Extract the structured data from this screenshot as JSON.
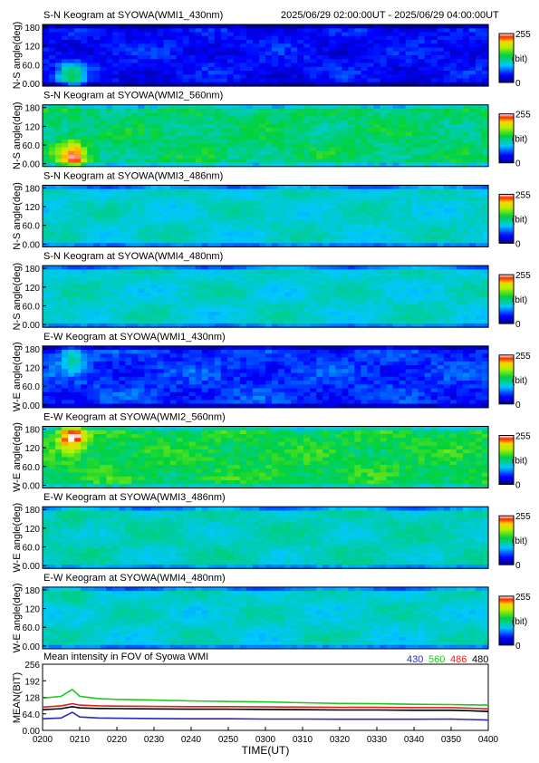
{
  "header": {
    "time_range": "2025/06/29 02:00:00UT - 2025/06/29 04:00:00UT"
  },
  "colorbar": {
    "max_label": "255",
    "unit_label": "(bit)",
    "min_label": "0"
  },
  "keograms": [
    {
      "title": "S-N Keogram at SYOWA(WMI1_430nm)",
      "ylabel": "N-S angle(deg)",
      "yticks": [
        "180",
        "120",
        "60.0",
        "0.00"
      ],
      "base": 0.15,
      "variation": 0.1,
      "event_strength": 0.35,
      "event_angle_deg": 30
    },
    {
      "title": "S-N Keogram at SYOWA(WMI2_560nm)",
      "ylabel": "N-S angle(deg)",
      "yticks": [
        "180",
        "120",
        "60.0",
        "0.00"
      ],
      "base": 0.5,
      "variation": 0.12,
      "event_strength": 0.45,
      "event_angle_deg": 30
    },
    {
      "title": "S-N Keogram at SYOWA(WMI3_486nm)",
      "ylabel": "N-S angle(deg)",
      "yticks": [
        "180",
        "120",
        "60.0",
        "0.00"
      ],
      "base": 0.4,
      "variation": 0.06,
      "event_strength": 0.05,
      "event_angle_deg": 30
    },
    {
      "title": "S-N Keogram at SYOWA(WMI4_480nm)",
      "ylabel": "N-S angle(deg)",
      "yticks": [
        "180",
        "120",
        "60.0",
        "0.00"
      ],
      "base": 0.4,
      "variation": 0.06,
      "event_strength": 0.05,
      "event_angle_deg": 30
    },
    {
      "title": "E-W Keogram at SYOWA(WMI1_430nm)",
      "ylabel": "W-E angle(deg)",
      "yticks": [
        "180",
        "120",
        "60.0",
        "0.00"
      ],
      "base": 0.2,
      "variation": 0.1,
      "event_strength": 0.25,
      "event_angle_deg": 150
    },
    {
      "title": "E-W Keogram at SYOWA(WMI2_560nm)",
      "ylabel": "W-E angle(deg)",
      "yticks": [
        "180",
        "120",
        "60.0",
        "0.00"
      ],
      "base": 0.55,
      "variation": 0.12,
      "event_strength": 0.45,
      "event_angle_deg": 150
    },
    {
      "title": "E-W Keogram at SYOWA(WMI3_486nm)",
      "ylabel": "W-E angle(deg)",
      "yticks": [
        "180",
        "120",
        "60.0",
        "0.00"
      ],
      "base": 0.42,
      "variation": 0.06,
      "event_strength": 0.05,
      "event_angle_deg": 150
    },
    {
      "title": "E-W Keogram at SYOWA(WMI4_480nm)",
      "ylabel": "W-E angle(deg)",
      "yticks": [
        "180",
        "120",
        "60.0",
        "0.00"
      ],
      "base": 0.4,
      "variation": 0.06,
      "event_strength": 0.05,
      "event_angle_deg": 150
    }
  ],
  "chart_data": {
    "type": "line",
    "title": "Mean intensity in FOV of Syowa WMI",
    "xlabel": "TIME(UT)",
    "ylabel": "MEAN(BIT)",
    "ylim": [
      0,
      256
    ],
    "yticks": [
      "256",
      "192",
      "128",
      "64.0",
      "0.00"
    ],
    "ytick_values": [
      256,
      192,
      128,
      64,
      0
    ],
    "x_ticks": [
      "0200",
      "0210",
      "0220",
      "0230",
      "0240",
      "0250",
      "0300",
      "0310",
      "0320",
      "0330",
      "0340",
      "0350",
      "0400"
    ],
    "x_minutes_after_0200": [
      0,
      5,
      8,
      10,
      15,
      20,
      30,
      40,
      50,
      60,
      70,
      80,
      90,
      100,
      110,
      115,
      120
    ],
    "series": [
      {
        "name": "430",
        "color": "#2a2ab8",
        "values": [
          45,
          48,
          70,
          52,
          48,
          47,
          46,
          45,
          45,
          44,
          44,
          43,
          43,
          43,
          44,
          42,
          40
        ]
      },
      {
        "name": "560",
        "color": "#1ec81e",
        "values": [
          125,
          132,
          158,
          132,
          123,
          120,
          117,
          114,
          112,
          110,
          107,
          104,
          103,
          101,
          100,
          99,
          98
        ]
      },
      {
        "name": "486",
        "color": "#e01e1e",
        "values": [
          90,
          95,
          103,
          98,
          95,
          94,
          93,
          92,
          92,
          91,
          90,
          89,
          89,
          88,
          88,
          86,
          83
        ]
      },
      {
        "name": "480",
        "color": "#000000",
        "values": [
          80,
          84,
          92,
          87,
          85,
          84,
          83,
          82,
          82,
          81,
          80,
          79,
          79,
          78,
          78,
          76,
          73
        ]
      }
    ]
  }
}
